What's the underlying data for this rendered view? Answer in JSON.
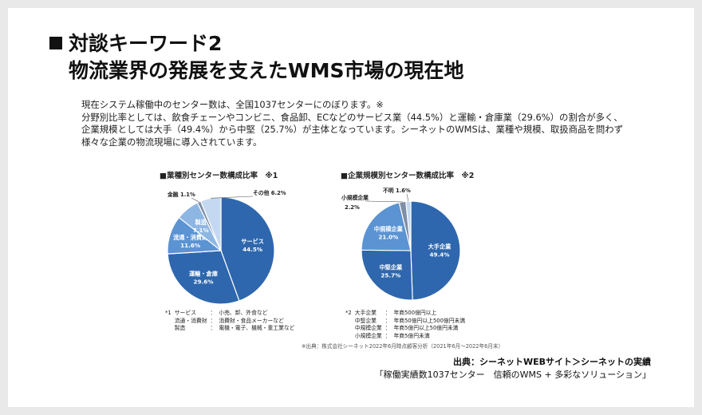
{
  "slide": {
    "title_line1": "対談キーワード2",
    "title_line2": "物流業界の発展を支えたWMS市場の現在地",
    "intro_line1": "現在システム稼働中のセンター数は、全国1037センターにのぼります。※",
    "intro_line2": "分野別比率としては、飲食チェーンやコンビニ、食品卸、ECなどのサービス業（44.5%）と運輸・倉庫業（29.6%）の割合が多く、企業規模としては大手（49.4%）から中堅（25.7%）が主体となっています。シーネットのWMSは、業種や規模、取扱商品を問わず様々な企業の物流現場に導入されています。",
    "fineprint": "※出典：株式会社シーネット2022年6月時点顧客分析（2021年6月～2022年6月末）",
    "source_line1": "出典：シーネットWEBサイト＞シーネットの実績",
    "source_line2": "「稼働実績数1037センター　信頼のWMS + 多彩なソリューション」"
  },
  "colors": {
    "slice_primary": "#2e67ad",
    "slice_secondary": "#5b93d3",
    "slice_light": "#8db6e3",
    "slice_pale": "#c4d9f0",
    "slice_grey": "#7f8fa6",
    "slice_border": "#ffffff"
  },
  "chart_data": [
    {
      "type": "pie",
      "title": "■業種別センター数構成比率　※1",
      "slices": [
        {
          "label": "サービス",
          "value": 44.5,
          "value_text": "44.5%"
        },
        {
          "label": "運輸・倉庫",
          "value": 29.6,
          "value_text": "29.6%"
        },
        {
          "label": "流通・消費財",
          "value": 11.6,
          "value_text": "11.6%"
        },
        {
          "label": "製造",
          "value": 7.1,
          "value_text": "7.1%"
        },
        {
          "label": "金融",
          "value": 1.1,
          "value_text": "1.1%"
        },
        {
          "label": "その他",
          "value": 6.2,
          "value_text": "6.2%"
        }
      ],
      "notes_marker": "*1",
      "notes": [
        {
          "term": "サービス",
          "sep": "：",
          "desc": "小売、卸、外食など"
        },
        {
          "term": "流通・消費財",
          "sep": "：",
          "desc": "消費財・食品メーカーなど"
        },
        {
          "term": "製造",
          "sep": "：",
          "desc": "電機・電子、機械・重工業など"
        }
      ]
    },
    {
      "type": "pie",
      "title": "■企業規模別センター数構成比率　※2",
      "slices": [
        {
          "label": "大手企業",
          "value": 49.4,
          "value_text": "49.4%"
        },
        {
          "label": "中堅企業",
          "value": 25.7,
          "value_text": "25.7%"
        },
        {
          "label": "中規模企業",
          "value": 21.0,
          "value_text": "21.0%"
        },
        {
          "label": "小規模企業",
          "value": 2.2,
          "value_text": "2.2%"
        },
        {
          "label": "不明",
          "value": 1.6,
          "value_text": "1.6%"
        }
      ],
      "notes_marker": "*2",
      "notes": [
        {
          "term": "大手企業",
          "sep": "：",
          "desc": "年商500億円以上"
        },
        {
          "term": "中堅企業",
          "sep": "：",
          "desc": "年商50億円以上500億円未満"
        },
        {
          "term": "中規模企業",
          "sep": "：",
          "desc": "年商5億円以上50億円未満"
        },
        {
          "term": "小規模企業",
          "sep": "：",
          "desc": "年商5億円未満"
        }
      ]
    }
  ]
}
